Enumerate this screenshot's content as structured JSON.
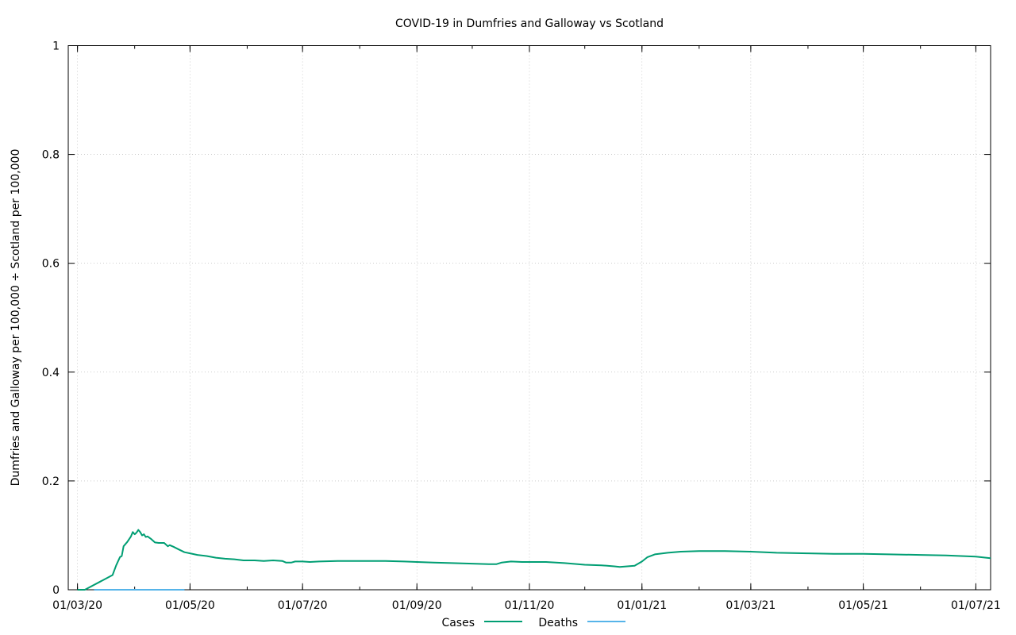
{
  "chart_data": {
    "type": "line",
    "title": "COVID-19 in Dumfries and Galloway vs Scotland",
    "xlabel": "",
    "ylabel": "Dumfries and Galloway per 100,000 ÷ Scotland per 100,000",
    "x_range": [
      "2020-02-25",
      "2021-07-09"
    ],
    "ylim": [
      0,
      1
    ],
    "grid": true,
    "legend_position": "bottom-center",
    "x_tick_labels": [
      {
        "date": "2020-03-01",
        "label": "01/03/20"
      },
      {
        "date": "2020-05-01",
        "label": "01/05/20"
      },
      {
        "date": "2020-07-01",
        "label": "01/07/20"
      },
      {
        "date": "2020-09-01",
        "label": "01/09/20"
      },
      {
        "date": "2020-11-01",
        "label": "01/11/20"
      },
      {
        "date": "2021-01-01",
        "label": "01/01/21"
      },
      {
        "date": "2021-03-01",
        "label": "01/03/21"
      },
      {
        "date": "2021-05-01",
        "label": "01/05/21"
      },
      {
        "date": "2021-07-01",
        "label": "01/07/21"
      }
    ],
    "y_ticks": [
      {
        "value": 0,
        "label": "0"
      },
      {
        "value": 0.2,
        "label": "0.2"
      },
      {
        "value": 0.4,
        "label": "0.4"
      },
      {
        "value": 0.6,
        "label": "0.6"
      },
      {
        "value": 0.8,
        "label": "0.8"
      },
      {
        "value": 1,
        "label": "1"
      }
    ],
    "series": [
      {
        "name": "Cases",
        "color": "#009e73",
        "points": [
          [
            "2020-03-01",
            0.0
          ],
          [
            "2020-03-05",
            0.0
          ],
          [
            "2020-03-20",
            0.027
          ],
          [
            "2020-03-22",
            0.045
          ],
          [
            "2020-03-24",
            0.06
          ],
          [
            "2020-03-25",
            0.062
          ],
          [
            "2020-03-26",
            0.08
          ],
          [
            "2020-03-28",
            0.088
          ],
          [
            "2020-03-30",
            0.098
          ],
          [
            "2020-03-31",
            0.106
          ],
          [
            "2020-04-01",
            0.102
          ],
          [
            "2020-04-02",
            0.105
          ],
          [
            "2020-04-03",
            0.11
          ],
          [
            "2020-04-04",
            0.106
          ],
          [
            "2020-04-05",
            0.1
          ],
          [
            "2020-04-06",
            0.102
          ],
          [
            "2020-04-07",
            0.097
          ],
          [
            "2020-04-08",
            0.098
          ],
          [
            "2020-04-10",
            0.093
          ],
          [
            "2020-04-12",
            0.087
          ],
          [
            "2020-04-14",
            0.086
          ],
          [
            "2020-04-17",
            0.086
          ],
          [
            "2020-04-19",
            0.08
          ],
          [
            "2020-04-20",
            0.082
          ],
          [
            "2020-04-22",
            0.079
          ],
          [
            "2020-04-25",
            0.074
          ],
          [
            "2020-04-28",
            0.069
          ],
          [
            "2020-05-01",
            0.067
          ],
          [
            "2020-05-05",
            0.064
          ],
          [
            "2020-05-10",
            0.062
          ],
          [
            "2020-05-15",
            0.059
          ],
          [
            "2020-05-20",
            0.057
          ],
          [
            "2020-05-25",
            0.056
          ],
          [
            "2020-05-30",
            0.054
          ],
          [
            "2020-06-05",
            0.054
          ],
          [
            "2020-06-10",
            0.053
          ],
          [
            "2020-06-15",
            0.054
          ],
          [
            "2020-06-20",
            0.053
          ],
          [
            "2020-06-22",
            0.05
          ],
          [
            "2020-06-25",
            0.05
          ],
          [
            "2020-06-27",
            0.052
          ],
          [
            "2020-07-01",
            0.052
          ],
          [
            "2020-07-05",
            0.051
          ],
          [
            "2020-07-10",
            0.052
          ],
          [
            "2020-07-20",
            0.053
          ],
          [
            "2020-08-01",
            0.053
          ],
          [
            "2020-08-15",
            0.053
          ],
          [
            "2020-08-25",
            0.052
          ],
          [
            "2020-09-01",
            0.051
          ],
          [
            "2020-09-10",
            0.05
          ],
          [
            "2020-09-20",
            0.049
          ],
          [
            "2020-10-01",
            0.048
          ],
          [
            "2020-10-10",
            0.047
          ],
          [
            "2020-10-14",
            0.047
          ],
          [
            "2020-10-17",
            0.05
          ],
          [
            "2020-10-22",
            0.052
          ],
          [
            "2020-10-28",
            0.051
          ],
          [
            "2020-11-01",
            0.051
          ],
          [
            "2020-11-10",
            0.051
          ],
          [
            "2020-11-20",
            0.049
          ],
          [
            "2020-12-01",
            0.046
          ],
          [
            "2020-12-10",
            0.045
          ],
          [
            "2020-12-17",
            0.043
          ],
          [
            "2020-12-20",
            0.042
          ],
          [
            "2020-12-24",
            0.043
          ],
          [
            "2020-12-28",
            0.044
          ],
          [
            "2021-01-01",
            0.052
          ],
          [
            "2021-01-04",
            0.06
          ],
          [
            "2021-01-08",
            0.065
          ],
          [
            "2021-01-15",
            0.068
          ],
          [
            "2021-01-22",
            0.07
          ],
          [
            "2021-02-01",
            0.071
          ],
          [
            "2021-02-15",
            0.071
          ],
          [
            "2021-03-01",
            0.07
          ],
          [
            "2021-03-15",
            0.068
          ],
          [
            "2021-04-01",
            0.067
          ],
          [
            "2021-04-15",
            0.066
          ],
          [
            "2021-05-01",
            0.066
          ],
          [
            "2021-05-15",
            0.065
          ],
          [
            "2021-06-01",
            0.064
          ],
          [
            "2021-06-15",
            0.063
          ],
          [
            "2021-07-01",
            0.061
          ],
          [
            "2021-07-09",
            0.058
          ]
        ]
      },
      {
        "name": "Deaths",
        "color": "#56b4e9",
        "points": [
          [
            "2020-03-10",
            0.0
          ],
          [
            "2020-03-20",
            0.0
          ],
          [
            "2020-04-01",
            0.0
          ],
          [
            "2020-04-15",
            0.0
          ],
          [
            "2020-04-28",
            0.0
          ]
        ]
      }
    ]
  }
}
